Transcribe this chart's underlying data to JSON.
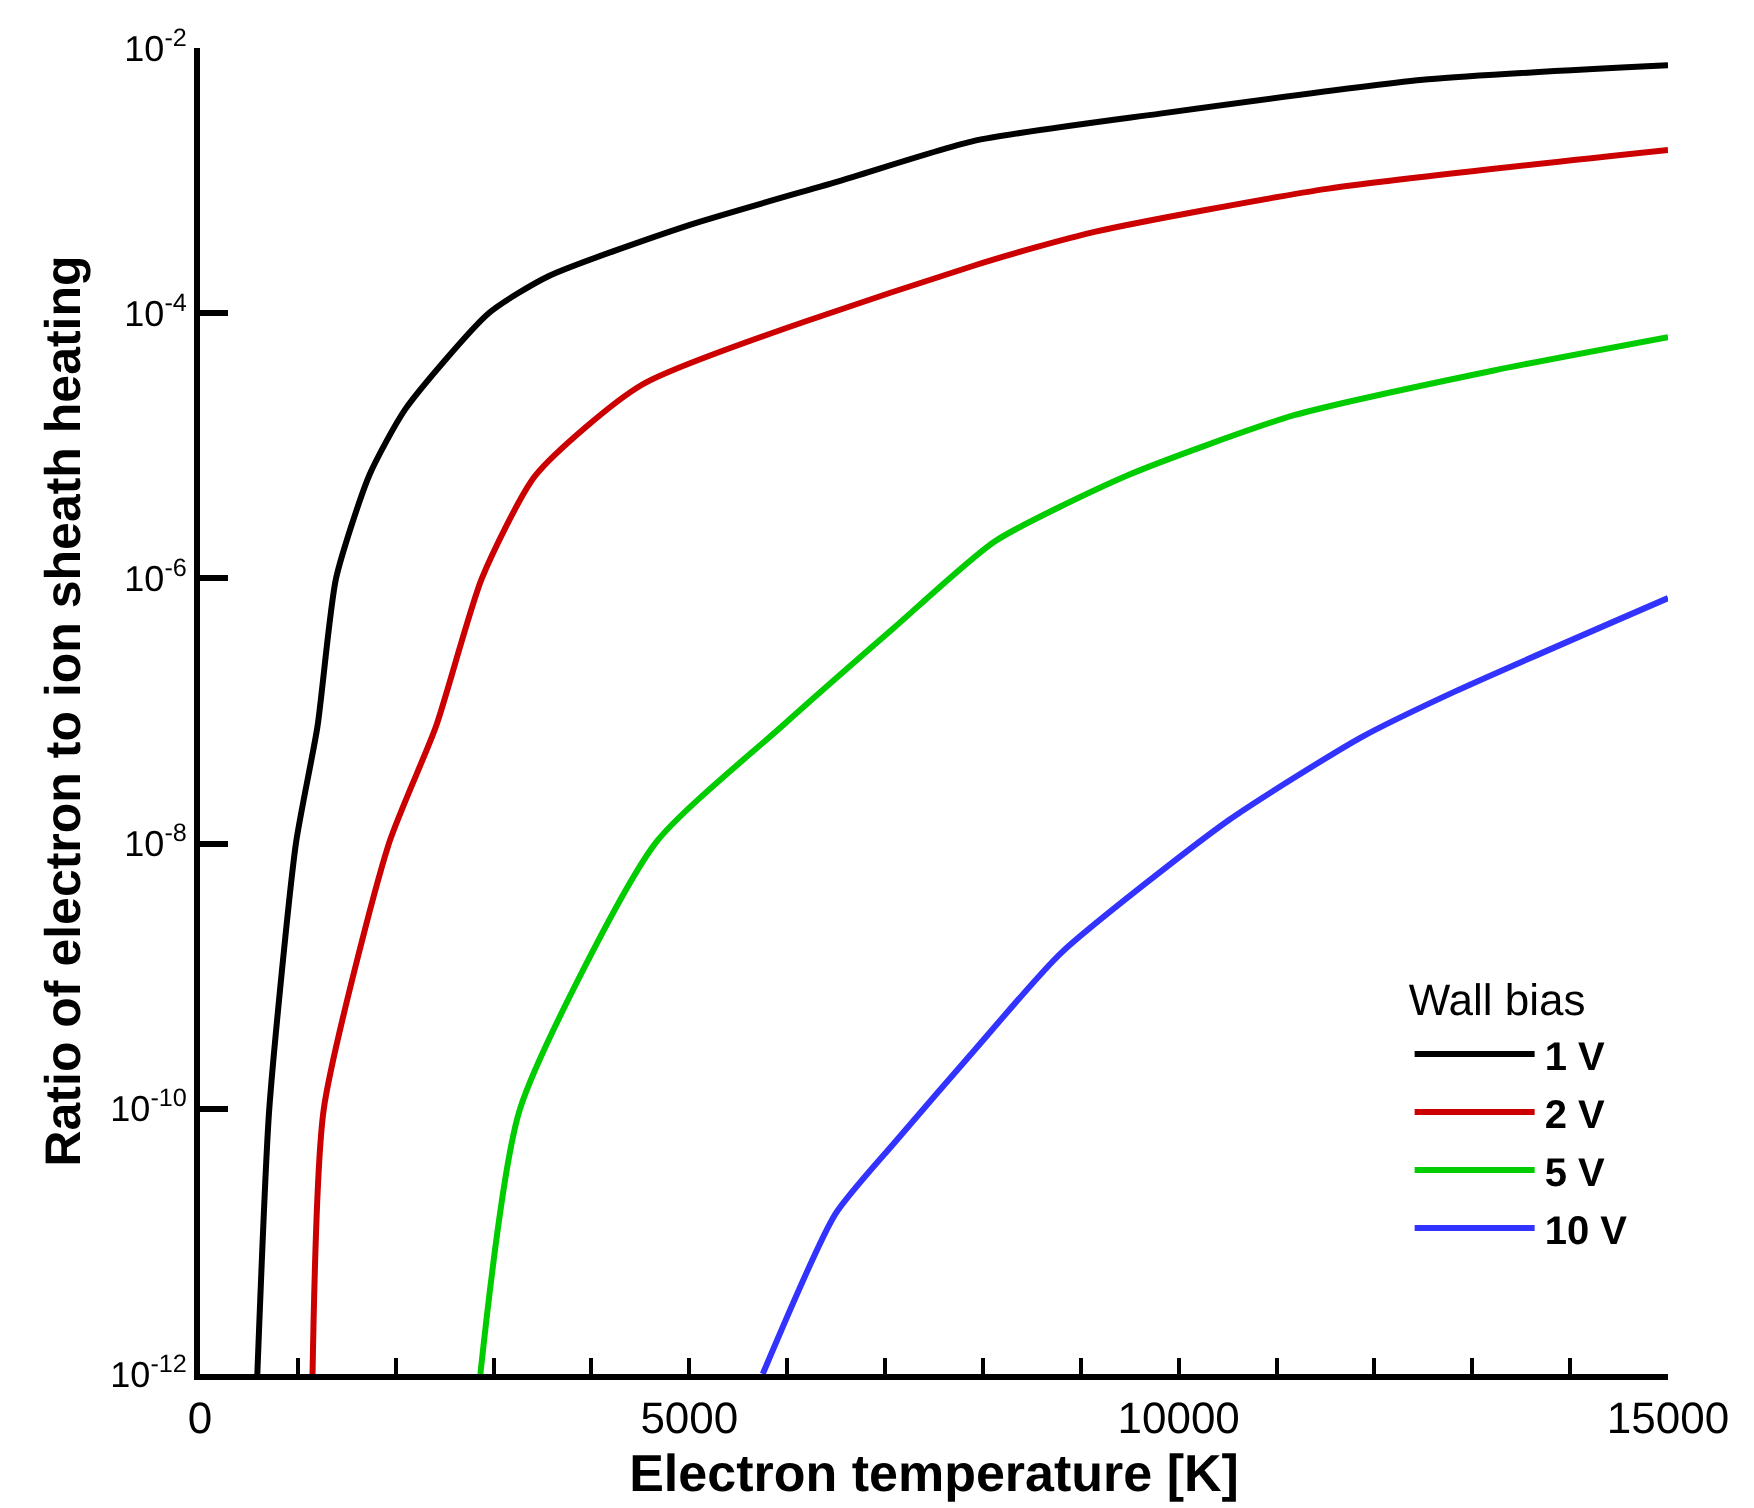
{
  "chart_data": {
    "type": "line",
    "xlabel": "Electron temperature [K]",
    "ylabel": "Ratio of electron to ion sheath heating",
    "legend_title": "Wall bias",
    "legend": "bottom right",
    "log": "y",
    "marker": "none",
    "line_style": "solid",
    "xlim": [
      0,
      15000
    ],
    "ylim": [
      1e-12,
      0.01
    ],
    "xticks": [
      0,
      {
        "value": 1000,
        "label": null
      },
      {
        "value": 2000,
        "label": null
      },
      {
        "value": 3000,
        "label": null
      },
      {
        "value": 4000,
        "label": null
      },
      5000,
      {
        "value": 6000,
        "label": null
      },
      {
        "value": 7000,
        "label": null
      },
      {
        "value": 8000,
        "label": null
      },
      {
        "value": 9000,
        "label": null
      },
      10000,
      {
        "value": 11000,
        "label": null
      },
      {
        "value": 12000,
        "label": null
      },
      {
        "value": 13000,
        "label": null
      },
      {
        "value": 14000,
        "label": null
      },
      15000
    ],
    "yticks": [
      {
        "value": 1e-12,
        "label": "10$^{-12}$"
      },
      {
        "value": 1e-10,
        "label": "10$^{-10}$"
      },
      {
        "value": 1e-08,
        "label": "10$^{-8}$"
      },
      {
        "value": 1e-06,
        "label": "10$^{-6}$"
      },
      {
        "value": 0.0001,
        "label": "10$^{-4}$"
      },
      {
        "value": 0.01,
        "label": "10$^{-2}$"
      }
    ],
    "series": [
      {
        "name": "1 V",
        "color": "#000000",
        "x": [
          586,
          708,
          980,
          1200,
          1390,
          1730,
          2100,
          2950,
          3560,
          4990,
          6550,
          7920,
          9810,
          12550,
          15000
        ],
        "values": [
          1e-12,
          1e-10,
          1e-08,
          7.6e-08,
          1e-06,
          6e-06,
          1.9e-05,
          0.0001,
          0.00019,
          0.00046,
          0.001,
          0.002,
          0.0032,
          0.0058,
          0.0074
        ]
      },
      {
        "name": "2 V",
        "color": "#cc0000",
        "x": [
          1150,
          1265,
          1930,
          2410,
          2880,
          3430,
          4520,
          7920,
          9140,
          11530,
          15000
        ],
        "values": [
          1e-12,
          1e-10,
          1e-08,
          7.6e-08,
          1e-06,
          6e-06,
          2.9e-05,
          0.00023,
          0.00041,
          0.00087,
          0.0017
        ]
      },
      {
        "name": "5 V",
        "color": "#00cc00",
        "x": [
          2865,
          3270,
          4650,
          5940,
          7100,
          8120,
          9480,
          11180,
          13220,
          15000
        ],
        "values": [
          1e-12,
          1e-10,
          1e-08,
          7.6e-08,
          4.3e-07,
          1.9e-06,
          6e-06,
          1.7e-05,
          3.7e-05,
          6.6e-05
        ]
      },
      {
        "name": "10 V",
        "color": "#3333ff",
        "x": [
          5750,
          6490,
          7100,
          7920,
          8800,
          10510,
          11860,
          12820,
          15000
        ],
        "values": [
          1e-12,
          1.6e-11,
          5.6e-11,
          2.8e-10,
          1.5e-09,
          1.5e-08,
          6.3e-08,
          1.4e-07,
          7.1e-07
        ]
      }
    ]
  }
}
